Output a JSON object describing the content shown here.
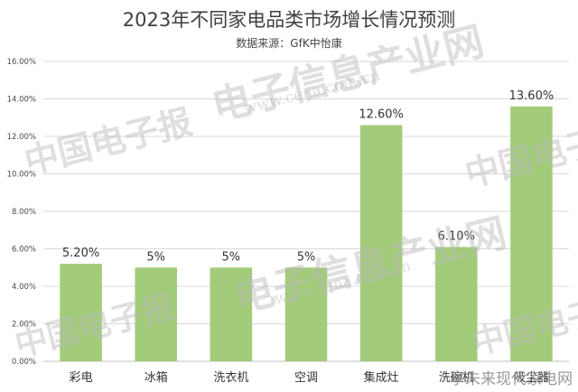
{
  "chart_data": {
    "type": "bar",
    "title": "2023年不同家电品类市场增长情况预测",
    "subtitle": "数据来源：GfK中怡康",
    "categories": [
      "彩电",
      "冰箱",
      "洗衣机",
      "空调",
      "集成灶",
      "洗碗机",
      "吸尘器"
    ],
    "values": [
      5.2,
      5,
      5,
      5,
      12.6,
      6.1,
      13.6
    ],
    "data_labels": [
      "5.20%",
      "5%",
      "5%",
      "5%",
      "12.60%",
      "6.10%",
      "13.60%"
    ],
    "ylim": [
      0,
      16
    ],
    "yticks": [
      "0.00%",
      "2.00%",
      "4.00%",
      "6.00%",
      "8.00%",
      "10.00%",
      "12.00%",
      "14.00%",
      "16.00%"
    ],
    "grid": true,
    "legend": "none",
    "bar_color": "#a3cc7a"
  },
  "watermark": {
    "main": "电子信息产业网",
    "url": "www.cena.com.cn",
    "side": "中国电子报"
  },
  "footer": {
    "text": "享未来现代家电网"
  }
}
